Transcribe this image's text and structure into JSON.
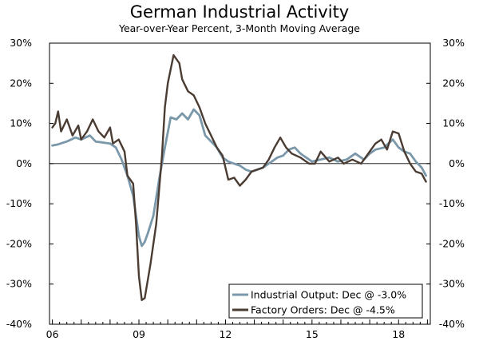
{
  "chart_data": {
    "type": "line",
    "title": "German Industrial Activity",
    "subtitle": "Year-over-Year Percent, 3-Month Moving Average",
    "xlabel": "",
    "ylabel": "",
    "xlim": [
      2005.9,
      2019.1
    ],
    "ylim": [
      -40,
      30
    ],
    "y_ticks": [
      30,
      20,
      10,
      0,
      -10,
      -20,
      -30,
      -40
    ],
    "y_tick_labels": [
      "30%",
      "20%",
      "10%",
      "0%",
      "-10%",
      "-20%",
      "-30%",
      "-40%"
    ],
    "x_ticks": [
      2006,
      2009,
      2012,
      2015,
      2018
    ],
    "x_tick_labels": [
      "06",
      "09",
      "12",
      "15",
      "18"
    ],
    "legend_position": "bottom-right",
    "series": [
      {
        "name": "Industrial Output: Dec @ -3.0%",
        "color": "#7a98aa",
        "x": [
          2006.0,
          2006.2,
          2006.5,
          2006.8,
          2007.0,
          2007.3,
          2007.5,
          2007.8,
          2008.0,
          2008.2,
          2008.4,
          2008.6,
          2008.8,
          2008.9,
          2009.0,
          2009.1,
          2009.2,
          2009.3,
          2009.5,
          2009.7,
          2009.9,
          2010.1,
          2010.3,
          2010.5,
          2010.7,
          2010.9,
          2011.1,
          2011.3,
          2011.5,
          2011.7,
          2011.9,
          2012.1,
          2012.3,
          2012.5,
          2012.7,
          2012.9,
          2013.1,
          2013.3,
          2013.5,
          2013.8,
          2014.0,
          2014.2,
          2014.4,
          2014.6,
          2014.8,
          2015.0,
          2015.3,
          2015.6,
          2015.9,
          2016.2,
          2016.5,
          2016.8,
          2017.0,
          2017.2,
          2017.5,
          2017.8,
          2018.0,
          2018.2,
          2018.4,
          2018.6,
          2018.8,
          2018.95
        ],
        "values": [
          4.5,
          4.8,
          5.5,
          6.5,
          6.0,
          7.0,
          5.5,
          5.2,
          5.0,
          4.0,
          1.0,
          -3.0,
          -8.0,
          -13.0,
          -18.0,
          -20.5,
          -19.5,
          -17.5,
          -13.0,
          -4.0,
          4.0,
          11.5,
          11.0,
          12.5,
          11.0,
          13.5,
          12.0,
          7.0,
          5.5,
          4.0,
          1.5,
          0.5,
          0.0,
          -0.5,
          -1.5,
          -2.0,
          -1.5,
          -1.0,
          0.0,
          1.5,
          2.0,
          3.5,
          4.0,
          2.5,
          1.5,
          0.5,
          1.0,
          1.5,
          0.5,
          1.0,
          2.5,
          1.0,
          2.5,
          3.5,
          4.0,
          6.0,
          4.0,
          3.0,
          2.5,
          0.5,
          -1.0,
          -3.0
        ]
      },
      {
        "name": "Factory Orders: Dec @ -4.5%",
        "color": "#4a3c33",
        "x": [
          2006.0,
          2006.1,
          2006.2,
          2006.3,
          2006.5,
          2006.7,
          2006.9,
          2007.0,
          2007.2,
          2007.4,
          2007.6,
          2007.8,
          2008.0,
          2008.1,
          2008.3,
          2008.5,
          2008.6,
          2008.8,
          2008.9,
          2009.0,
          2009.1,
          2009.2,
          2009.4,
          2009.6,
          2009.8,
          2009.9,
          2010.0,
          2010.2,
          2010.4,
          2010.5,
          2010.7,
          2010.9,
          2011.1,
          2011.3,
          2011.5,
          2011.7,
          2011.9,
          2012.1,
          2012.3,
          2012.5,
          2012.7,
          2012.9,
          2013.1,
          2013.3,
          2013.5,
          2013.7,
          2013.9,
          2014.1,
          2014.3,
          2014.6,
          2014.9,
          2015.1,
          2015.3,
          2015.6,
          2015.9,
          2016.1,
          2016.4,
          2016.7,
          2016.9,
          2017.2,
          2017.4,
          2017.6,
          2017.8,
          2018.0,
          2018.2,
          2018.4,
          2018.6,
          2018.8,
          2018.95
        ],
        "values": [
          9.0,
          10.0,
          13.0,
          8.0,
          11.0,
          7.0,
          9.5,
          6.0,
          8.0,
          11.0,
          8.0,
          6.5,
          9.0,
          5.0,
          6.0,
          3.0,
          -3.0,
          -5.0,
          -15.0,
          -28.0,
          -34.0,
          -33.5,
          -25.0,
          -15.0,
          2.0,
          14.0,
          20.0,
          27.0,
          25.0,
          21.0,
          18.0,
          17.0,
          14.0,
          10.0,
          7.0,
          4.0,
          2.0,
          -4.0,
          -3.5,
          -5.5,
          -4.0,
          -2.0,
          -1.5,
          -1.0,
          1.0,
          4.0,
          6.5,
          4.0,
          2.5,
          1.5,
          0.0,
          0.0,
          3.0,
          0.5,
          1.5,
          0.0,
          1.0,
          0.0,
          2.0,
          5.0,
          6.0,
          3.5,
          8.0,
          7.5,
          3.0,
          0.0,
          -2.0,
          -2.5,
          -4.5
        ]
      }
    ]
  }
}
